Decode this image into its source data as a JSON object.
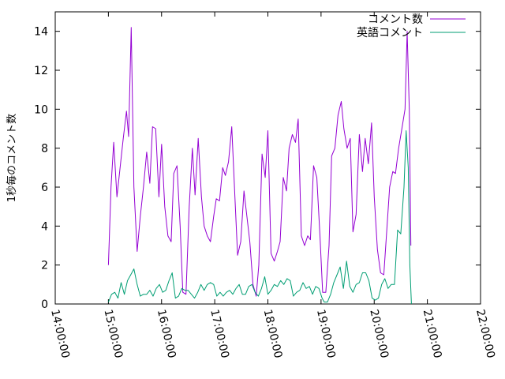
{
  "chart_data": {
    "type": "line",
    "ylabel": "1秒毎のコメント数",
    "xlabel": "",
    "title": "",
    "x_ticks": [
      "14:00:00",
      "15:00:00",
      "16:00:00",
      "17:00:00",
      "18:00:00",
      "19:00:00",
      "20:00:00",
      "21:00:00",
      "22:00:00"
    ],
    "y_ticks": [
      "0",
      "2",
      "4",
      "6",
      "8",
      "10",
      "12",
      "14"
    ],
    "xlim_hours": [
      14,
      22
    ],
    "ylim": [
      0,
      15
    ],
    "grid": false,
    "legend_position": "top-right",
    "series": [
      {
        "name": "コメント数",
        "color": "#9400d3",
        "points": [
          [
            15.0,
            2.0
          ],
          [
            15.05,
            6.0
          ],
          [
            15.1,
            8.3
          ],
          [
            15.16,
            5.5
          ],
          [
            15.22,
            7.0
          ],
          [
            15.28,
            8.5
          ],
          [
            15.34,
            9.9
          ],
          [
            15.38,
            8.6
          ],
          [
            15.43,
            14.2
          ],
          [
            15.48,
            6.0
          ],
          [
            15.54,
            2.7
          ],
          [
            15.6,
            4.5
          ],
          [
            15.66,
            6.0
          ],
          [
            15.72,
            7.8
          ],
          [
            15.78,
            6.2
          ],
          [
            15.83,
            9.1
          ],
          [
            15.89,
            9.0
          ],
          [
            15.95,
            5.5
          ],
          [
            16.0,
            8.2
          ],
          [
            16.06,
            5.0
          ],
          [
            16.12,
            3.5
          ],
          [
            16.18,
            3.2
          ],
          [
            16.23,
            6.7
          ],
          [
            16.29,
            7.1
          ],
          [
            16.35,
            4.0
          ],
          [
            16.4,
            0.6
          ],
          [
            16.46,
            0.5
          ],
          [
            16.52,
            5.0
          ],
          [
            16.58,
            8.0
          ],
          [
            16.63,
            5.6
          ],
          [
            16.69,
            8.5
          ],
          [
            16.75,
            5.5
          ],
          [
            16.8,
            4.0
          ],
          [
            16.86,
            3.5
          ],
          [
            16.92,
            3.2
          ],
          [
            16.98,
            4.5
          ],
          [
            17.03,
            5.4
          ],
          [
            17.09,
            5.3
          ],
          [
            17.15,
            7.0
          ],
          [
            17.2,
            6.6
          ],
          [
            17.26,
            7.3
          ],
          [
            17.32,
            9.1
          ],
          [
            17.38,
            5.5
          ],
          [
            17.43,
            2.5
          ],
          [
            17.49,
            3.2
          ],
          [
            17.55,
            5.8
          ],
          [
            17.6,
            4.6
          ],
          [
            17.66,
            3.2
          ],
          [
            17.72,
            1.0
          ],
          [
            17.78,
            0.4
          ],
          [
            17.83,
            2.0
          ],
          [
            17.89,
            7.7
          ],
          [
            17.95,
            6.5
          ],
          [
            18.0,
            8.9
          ],
          [
            18.06,
            2.6
          ],
          [
            18.12,
            2.2
          ],
          [
            18.18,
            2.7
          ],
          [
            18.23,
            3.2
          ],
          [
            18.29,
            6.5
          ],
          [
            18.35,
            5.8
          ],
          [
            18.4,
            8.0
          ],
          [
            18.46,
            8.7
          ],
          [
            18.52,
            8.3
          ],
          [
            18.57,
            9.5
          ],
          [
            18.63,
            3.5
          ],
          [
            18.69,
            3.0
          ],
          [
            18.75,
            3.5
          ],
          [
            18.8,
            3.3
          ],
          [
            18.86,
            7.1
          ],
          [
            18.92,
            6.5
          ],
          [
            18.98,
            3.5
          ],
          [
            19.03,
            0.6
          ],
          [
            19.09,
            0.6
          ],
          [
            19.15,
            3.0
          ],
          [
            19.2,
            7.6
          ],
          [
            19.26,
            8.0
          ],
          [
            19.32,
            9.7
          ],
          [
            19.38,
            10.4
          ],
          [
            19.43,
            9.0
          ],
          [
            19.49,
            8.0
          ],
          [
            19.55,
            8.5
          ],
          [
            19.6,
            3.7
          ],
          [
            19.66,
            4.6
          ],
          [
            19.72,
            8.7
          ],
          [
            19.78,
            6.8
          ],
          [
            19.83,
            8.5
          ],
          [
            19.89,
            7.2
          ],
          [
            19.95,
            9.3
          ],
          [
            20.0,
            5.5
          ],
          [
            20.06,
            2.8
          ],
          [
            20.12,
            1.6
          ],
          [
            20.18,
            1.5
          ],
          [
            20.23,
            3.5
          ],
          [
            20.29,
            6.0
          ],
          [
            20.35,
            6.8
          ],
          [
            20.4,
            6.7
          ],
          [
            20.46,
            8.0
          ],
          [
            20.52,
            9.0
          ],
          [
            20.58,
            10.0
          ],
          [
            20.62,
            14.0
          ],
          [
            20.66,
            10.0
          ],
          [
            20.69,
            3.0
          ]
        ]
      },
      {
        "name": "英語コメント",
        "color": "#009e73",
        "points": [
          [
            15.0,
            0.1
          ],
          [
            15.06,
            0.5
          ],
          [
            15.12,
            0.6
          ],
          [
            15.18,
            0.3
          ],
          [
            15.24,
            1.1
          ],
          [
            15.3,
            0.5
          ],
          [
            15.36,
            1.2
          ],
          [
            15.42,
            1.5
          ],
          [
            15.48,
            1.8
          ],
          [
            15.54,
            1.0
          ],
          [
            15.6,
            0.4
          ],
          [
            15.66,
            0.5
          ],
          [
            15.72,
            0.5
          ],
          [
            15.78,
            0.7
          ],
          [
            15.84,
            0.4
          ],
          [
            15.9,
            0.8
          ],
          [
            15.96,
            1.0
          ],
          [
            16.02,
            0.6
          ],
          [
            16.08,
            0.7
          ],
          [
            16.14,
            1.2
          ],
          [
            16.2,
            1.6
          ],
          [
            16.26,
            0.3
          ],
          [
            16.32,
            0.4
          ],
          [
            16.38,
            0.8
          ],
          [
            16.44,
            0.7
          ],
          [
            16.5,
            0.7
          ],
          [
            16.56,
            0.5
          ],
          [
            16.62,
            0.3
          ],
          [
            16.68,
            0.6
          ],
          [
            16.74,
            1.0
          ],
          [
            16.8,
            0.7
          ],
          [
            16.86,
            1.0
          ],
          [
            16.92,
            1.1
          ],
          [
            16.98,
            1.0
          ],
          [
            17.04,
            0.4
          ],
          [
            17.1,
            0.6
          ],
          [
            17.16,
            0.4
          ],
          [
            17.22,
            0.6
          ],
          [
            17.28,
            0.7
          ],
          [
            17.34,
            0.5
          ],
          [
            17.4,
            0.8
          ],
          [
            17.46,
            1.0
          ],
          [
            17.52,
            0.5
          ],
          [
            17.58,
            0.5
          ],
          [
            17.64,
            0.9
          ],
          [
            17.7,
            1.0
          ],
          [
            17.76,
            0.6
          ],
          [
            17.82,
            0.4
          ],
          [
            17.88,
            0.8
          ],
          [
            17.94,
            1.4
          ],
          [
            18.0,
            0.5
          ],
          [
            18.06,
            0.7
          ],
          [
            18.12,
            1.0
          ],
          [
            18.18,
            0.9
          ],
          [
            18.24,
            1.2
          ],
          [
            18.3,
            1.0
          ],
          [
            18.36,
            1.3
          ],
          [
            18.42,
            1.2
          ],
          [
            18.48,
            0.4
          ],
          [
            18.54,
            0.6
          ],
          [
            18.6,
            0.7
          ],
          [
            18.66,
            1.1
          ],
          [
            18.72,
            0.8
          ],
          [
            18.78,
            0.9
          ],
          [
            18.84,
            0.5
          ],
          [
            18.9,
            0.9
          ],
          [
            18.96,
            0.8
          ],
          [
            19.02,
            0.3
          ],
          [
            19.06,
            0.1
          ],
          [
            19.12,
            0.1
          ],
          [
            19.18,
            0.5
          ],
          [
            19.24,
            1.1
          ],
          [
            19.3,
            1.5
          ],
          [
            19.36,
            1.9
          ],
          [
            19.42,
            0.8
          ],
          [
            19.48,
            2.2
          ],
          [
            19.54,
            0.9
          ],
          [
            19.6,
            0.6
          ],
          [
            19.66,
            1.0
          ],
          [
            19.72,
            1.1
          ],
          [
            19.78,
            1.6
          ],
          [
            19.84,
            1.6
          ],
          [
            19.9,
            1.2
          ],
          [
            19.96,
            0.3
          ],
          [
            20.02,
            0.2
          ],
          [
            20.08,
            0.3
          ],
          [
            20.14,
            1.0
          ],
          [
            20.2,
            1.3
          ],
          [
            20.26,
            0.8
          ],
          [
            20.32,
            1.0
          ],
          [
            20.38,
            1.0
          ],
          [
            20.44,
            3.8
          ],
          [
            20.5,
            3.6
          ],
          [
            20.56,
            6.0
          ],
          [
            20.6,
            8.9
          ],
          [
            20.64,
            7.0
          ],
          [
            20.67,
            2.0
          ],
          [
            20.7,
            0.0
          ]
        ]
      }
    ]
  }
}
